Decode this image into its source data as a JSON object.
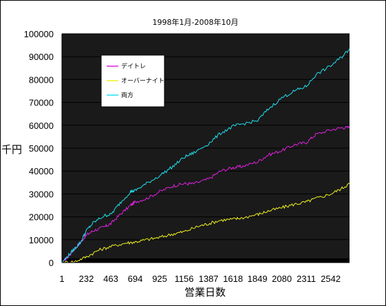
{
  "chart_data": {
    "type": "line",
    "title": "1998年1月-2008年10月",
    "xlabel": "営業日数",
    "ylabel": "千円",
    "ylim": [
      0,
      100000
    ],
    "xlim": [
      1,
      2720
    ],
    "x_ticks": [
      "1",
      "232",
      "463",
      "694",
      "925",
      "1156",
      "1387",
      "1618",
      "1849",
      "2080",
      "2311",
      "2542"
    ],
    "y_ticks": [
      "0",
      "10000",
      "20000",
      "30000",
      "40000",
      "50000",
      "60000",
      "70000",
      "80000",
      "90000",
      "100000"
    ],
    "grid": true,
    "legend_position": "top-left",
    "plot_background": "#1a1a1a",
    "series": [
      {
        "name": "デイトレ",
        "color": "#e020e0",
        "points": [
          [
            1,
            0
          ],
          [
            60,
            2500
          ],
          [
            120,
            6000
          ],
          [
            180,
            9000
          ],
          [
            232,
            12000
          ],
          [
            300,
            14000
          ],
          [
            400,
            15500
          ],
          [
            463,
            17000
          ],
          [
            550,
            21000
          ],
          [
            650,
            25000
          ],
          [
            694,
            26500
          ],
          [
            800,
            28000
          ],
          [
            925,
            31000
          ],
          [
            1050,
            33500
          ],
          [
            1156,
            34500
          ],
          [
            1250,
            34500
          ],
          [
            1387,
            36500
          ],
          [
            1500,
            40000
          ],
          [
            1618,
            41500
          ],
          [
            1700,
            42000
          ],
          [
            1849,
            44000
          ],
          [
            1950,
            47000
          ],
          [
            2080,
            49000
          ],
          [
            2200,
            51500
          ],
          [
            2311,
            52500
          ],
          [
            2400,
            56000
          ],
          [
            2542,
            58000
          ],
          [
            2650,
            59000
          ],
          [
            2720,
            59000
          ]
        ]
      },
      {
        "name": "オーバーナイト",
        "color": "#f0f020",
        "points": [
          [
            1,
            0
          ],
          [
            120,
            400
          ],
          [
            232,
            2500
          ],
          [
            350,
            5500
          ],
          [
            463,
            7000
          ],
          [
            600,
            8500
          ],
          [
            694,
            9000
          ],
          [
            800,
            10000
          ],
          [
            925,
            11000
          ],
          [
            1050,
            12500
          ],
          [
            1156,
            13500
          ],
          [
            1300,
            16000
          ],
          [
            1387,
            17000
          ],
          [
            1500,
            18500
          ],
          [
            1618,
            19000
          ],
          [
            1700,
            19500
          ],
          [
            1849,
            21000
          ],
          [
            1950,
            22500
          ],
          [
            2080,
            24000
          ],
          [
            2200,
            25500
          ],
          [
            2311,
            26500
          ],
          [
            2400,
            28000
          ],
          [
            2542,
            30000
          ],
          [
            2650,
            32500
          ],
          [
            2720,
            34500
          ]
        ]
      },
      {
        "name": "両方",
        "color": "#20e0f0",
        "points": [
          [
            1,
            0
          ],
          [
            60,
            3000
          ],
          [
            120,
            6000
          ],
          [
            180,
            9000
          ],
          [
            232,
            14000
          ],
          [
            300,
            17500
          ],
          [
            400,
            20500
          ],
          [
            463,
            21000
          ],
          [
            550,
            26000
          ],
          [
            650,
            31000
          ],
          [
            694,
            31500
          ],
          [
            800,
            34500
          ],
          [
            925,
            38000
          ],
          [
            1050,
            42000
          ],
          [
            1156,
            46000
          ],
          [
            1250,
            48000
          ],
          [
            1387,
            52000
          ],
          [
            1500,
            56500
          ],
          [
            1618,
            59500
          ],
          [
            1700,
            60500
          ],
          [
            1849,
            62000
          ],
          [
            1950,
            67000
          ],
          [
            2080,
            72000
          ],
          [
            2200,
            75000
          ],
          [
            2311,
            77000
          ],
          [
            2400,
            82000
          ],
          [
            2542,
            86000
          ],
          [
            2650,
            90000
          ],
          [
            2720,
            93500
          ]
        ]
      }
    ]
  }
}
